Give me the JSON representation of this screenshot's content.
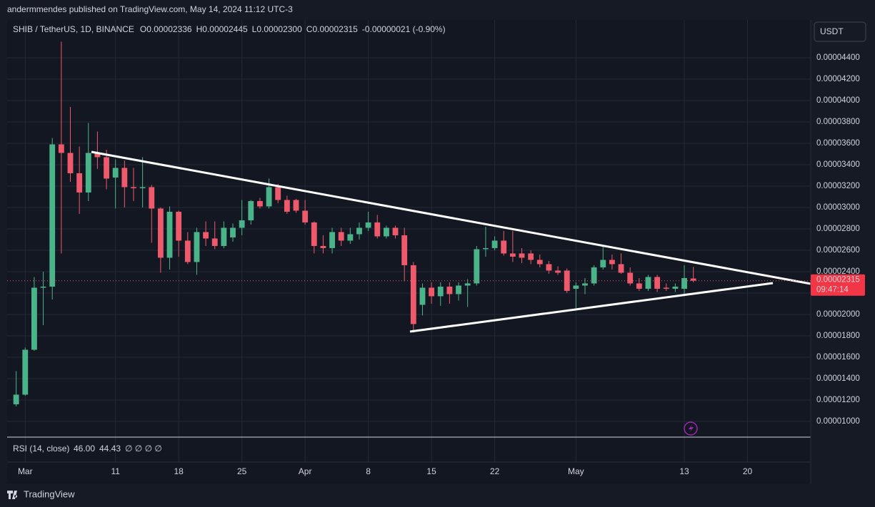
{
  "chart_data": {
    "type": "candlestick",
    "header": "andermmendes published on TradingView.com, May 14, 2024 11:12 UTC-3",
    "symbol": "SHIB / TetherUS, 1D, BINANCE",
    "ohlc_letters": [
      "O",
      "H",
      "L",
      "C"
    ],
    "last_bar_labels": {
      "open": "0.00002336",
      "high": "0.00002445",
      "low": "0.00002300",
      "close": "0.00002315",
      "change": "-0.00000021 (-0.90%)"
    },
    "currency": "USDT",
    "countdown": "09:47:14",
    "rsi": {
      "label": "RSI (14, close)",
      "values": [
        "46.00",
        "44.43"
      ],
      "colors": [
        "#7e57c2",
        "#fdd835"
      ],
      "na": "∅ ∅ ∅ ∅"
    },
    "brand": "TradingView",
    "up_color": "#4bb38a",
    "down_color": "#ee5a6b",
    "dates": [
      "2024-02-29",
      "2024-03-01",
      "2024-03-02",
      "2024-03-03",
      "2024-03-04",
      "2024-03-05",
      "2024-03-06",
      "2024-03-07",
      "2024-03-08",
      "2024-03-09",
      "2024-03-10",
      "2024-03-11",
      "2024-03-12",
      "2024-03-13",
      "2024-03-14",
      "2024-03-15",
      "2024-03-16",
      "2024-03-17",
      "2024-03-18",
      "2024-03-19",
      "2024-03-20",
      "2024-03-21",
      "2024-03-22",
      "2024-03-23",
      "2024-03-24",
      "2024-03-25",
      "2024-03-26",
      "2024-03-27",
      "2024-03-28",
      "2024-03-29",
      "2024-03-30",
      "2024-03-31",
      "2024-04-01",
      "2024-04-02",
      "2024-04-03",
      "2024-04-04",
      "2024-04-05",
      "2024-04-06",
      "2024-04-07",
      "2024-04-08",
      "2024-04-09",
      "2024-04-10",
      "2024-04-11",
      "2024-04-12",
      "2024-04-13",
      "2024-04-14",
      "2024-04-15",
      "2024-04-16",
      "2024-04-17",
      "2024-04-18",
      "2024-04-19",
      "2024-04-20",
      "2024-04-21",
      "2024-04-22",
      "2024-04-23",
      "2024-04-24",
      "2024-04-25",
      "2024-04-26",
      "2024-04-27",
      "2024-04-28",
      "2024-04-29",
      "2024-04-30",
      "2024-05-01",
      "2024-05-02",
      "2024-05-03",
      "2024-05-04",
      "2024-05-05",
      "2024-05-06",
      "2024-05-07",
      "2024-05-08",
      "2024-05-09",
      "2024-05-10",
      "2024-05-11",
      "2024-05-12",
      "2024-05-13",
      "2024-05-14"
    ],
    "open": [
      1.16e-05,
      1.25e-05,
      1.67e-05,
      2.25e-05,
      2.26e-05,
      3.59e-05,
      3.51e-05,
      3.32e-05,
      3.14e-05,
      3.51e-05,
      3.47e-05,
      3.28e-05,
      3.37e-05,
      3.19e-05,
      3.18e-05,
      3.19e-05,
      2.99e-05,
      2.53e-05,
      2.96e-05,
      2.69e-05,
      2.49e-05,
      2.77e-05,
      2.71e-05,
      2.64e-05,
      2.72e-05,
      2.81e-05,
      2.88e-05,
      3.06e-05,
      3.01e-05,
      3.19e-05,
      3.07e-05,
      3.07e-05,
      2.97e-05,
      2.86e-05,
      2.64e-05,
      2.62e-05,
      2.77e-05,
      2.69e-05,
      2.75e-05,
      2.81e-05,
      2.86e-05,
      2.73e-05,
      2.81e-05,
      2.74e-05,
      2.46e-05,
      2.09e-05,
      2.25e-05,
      2.17e-05,
      2.26e-05,
      2.19e-05,
      2.27e-05,
      2.29e-05,
      2.61e-05,
      2.62e-05,
      2.69e-05,
      2.57e-05,
      2.57e-05,
      2.57e-05,
      2.51e-05,
      2.47e-05,
      2.41e-05,
      2.41e-05,
      2.24e-05,
      2.27e-05,
      2.29e-05,
      2.44e-05,
      2.51e-05,
      2.47e-05,
      2.39e-05,
      2.29e-05,
      2.24e-05,
      2.35e-05,
      2.25e-05,
      2.24e-05,
      2.24e-05,
      2.336e-05
    ],
    "high": [
      1.47e-05,
      1.69e-05,
      2.35e-05,
      2.4e-05,
      3.65e-05,
      4.55e-05,
      3.94e-05,
      3.57e-05,
      3.79e-05,
      3.71e-05,
      3.54e-05,
      3.45e-05,
      3.44e-05,
      3.37e-05,
      3.47e-05,
      3.21e-05,
      3e-05,
      3.01e-05,
      2.97e-05,
      2.77e-05,
      2.81e-05,
      2.87e-05,
      2.87e-05,
      2.87e-05,
      2.85e-05,
      3.07e-05,
      3.07e-05,
      3.09e-05,
      3.27e-05,
      3.22e-05,
      3.11e-05,
      3.08e-05,
      3.07e-05,
      2.87e-05,
      2.74e-05,
      2.81e-05,
      2.81e-05,
      2.81e-05,
      2.86e-05,
      2.96e-05,
      2.93e-05,
      2.83e-05,
      2.83e-05,
      2.81e-05,
      2.49e-05,
      2.29e-05,
      2.3e-05,
      2.3e-05,
      2.3e-05,
      2.3e-05,
      2.33e-05,
      2.64e-05,
      2.82e-05,
      2.73e-05,
      2.78e-05,
      2.78e-05,
      2.62e-05,
      2.6e-05,
      2.56e-05,
      2.5e-05,
      2.45e-05,
      2.43e-05,
      2.3e-05,
      2.34e-05,
      2.46e-05,
      2.64e-05,
      2.56e-05,
      2.57e-05,
      2.44e-05,
      2.34e-05,
      2.37e-05,
      2.37e-05,
      2.29e-05,
      2.29e-05,
      2.46e-05,
      2.445e-05
    ],
    "low": [
      1.14e-05,
      1.24e-05,
      1.66e-05,
      1.9e-05,
      2.14e-05,
      2.57e-05,
      3.24e-05,
      2.94e-05,
      3.06e-05,
      3.36e-05,
      3.17e-05,
      2.99e-05,
      3e-05,
      3.06e-05,
      3e-05,
      2.67e-05,
      2.39e-05,
      2.42e-05,
      2.54e-05,
      2.47e-05,
      2.37e-05,
      2.64e-05,
      2.61e-05,
      2.62e-05,
      2.68e-05,
      2.74e-05,
      2.84e-05,
      2.99e-05,
      2.99e-05,
      3.04e-05,
      2.94e-05,
      2.95e-05,
      2.84e-05,
      2.57e-05,
      2.57e-05,
      2.57e-05,
      2.64e-05,
      2.66e-05,
      2.7e-05,
      2.78e-05,
      2.71e-05,
      2.71e-05,
      2.71e-05,
      2.31e-05,
      1.83e-05,
      1.99e-05,
      2.1e-05,
      2.08e-05,
      2.1e-05,
      2.13e-05,
      2.07e-05,
      2.27e-05,
      2.54e-05,
      2.6e-05,
      2.55e-05,
      2.49e-05,
      2.48e-05,
      2.47e-05,
      2.44e-05,
      2.38e-05,
      2.37e-05,
      2.2e-05,
      2.06e-05,
      2.19e-05,
      2.27e-05,
      2.42e-05,
      2.42e-05,
      2.38e-05,
      2.27e-05,
      2.22e-05,
      2.22e-05,
      2.21e-05,
      2.22e-05,
      2.21e-05,
      2.17e-05,
      2.3e-05
    ],
    "close": [
      1.25e-05,
      1.67e-05,
      2.25e-05,
      2.26e-05,
      3.59e-05,
      3.51e-05,
      3.32e-05,
      3.14e-05,
      3.51e-05,
      3.47e-05,
      3.27e-05,
      3.37e-05,
      3.19e-05,
      3.18e-05,
      3.19e-05,
      2.99e-05,
      2.53e-05,
      2.96e-05,
      2.69e-05,
      2.49e-05,
      2.77e-05,
      2.71e-05,
      2.64e-05,
      2.81e-05,
      2.81e-05,
      2.88e-05,
      3.06e-05,
      3.01e-05,
      3.19e-05,
      3.07e-05,
      2.96e-05,
      2.97e-05,
      2.86e-05,
      2.64e-05,
      2.62e-05,
      2.77e-05,
      2.69e-05,
      2.75e-05,
      2.81e-05,
      2.86e-05,
      2.73e-05,
      2.81e-05,
      2.74e-05,
      2.46e-05,
      1.91e-05,
      2.25e-05,
      2.17e-05,
      2.26e-05,
      2.19e-05,
      2.27e-05,
      2.29e-05,
      2.61e-05,
      2.62e-05,
      2.69e-05,
      2.57e-05,
      2.54e-05,
      2.53e-05,
      2.51e-05,
      2.47e-05,
      2.41e-05,
      2.39e-05,
      2.22e-05,
      2.27e-05,
      2.29e-05,
      2.44e-05,
      2.51e-05,
      2.47e-05,
      2.39e-05,
      2.29e-05,
      2.24e-05,
      2.35e-05,
      2.24e-05,
      2.24e-05,
      2.26e-05,
      2.34e-05,
      2.315e-05
    ],
    "xlim": [
      "2024-02-28",
      "2024-05-27"
    ],
    "xticks": [
      {
        "value": "2024-03-01",
        "label": "Mar"
      },
      {
        "value": "2024-03-11",
        "label": "11"
      },
      {
        "value": "2024-03-18",
        "label": "18"
      },
      {
        "value": "2024-03-25",
        "label": "25"
      },
      {
        "value": "2024-04-01",
        "label": "Apr"
      },
      {
        "value": "2024-04-08",
        "label": "8"
      },
      {
        "value": "2024-04-15",
        "label": "15"
      },
      {
        "value": "2024-04-22",
        "label": "22"
      },
      {
        "value": "2024-05-01",
        "label": "May"
      },
      {
        "value": "2024-05-13",
        "label": "13"
      },
      {
        "value": "2024-05-20",
        "label": "20"
      }
    ],
    "ylim": [
      8.53e-06,
      4.753e-05
    ],
    "yticks": [
      {
        "value": 4.4e-05,
        "label": "0.00004400"
      },
      {
        "value": 4.2e-05,
        "label": "0.00004200"
      },
      {
        "value": 4e-05,
        "label": "0.00004000"
      },
      {
        "value": 3.8e-05,
        "label": "0.00003800"
      },
      {
        "value": 3.6e-05,
        "label": "0.00003600"
      },
      {
        "value": 3.4e-05,
        "label": "0.00003400"
      },
      {
        "value": 3.2e-05,
        "label": "0.00003200"
      },
      {
        "value": 3e-05,
        "label": "0.00003000"
      },
      {
        "value": 2.8e-05,
        "label": "0.00002800"
      },
      {
        "value": 2.6e-05,
        "label": "0.00002600"
      },
      {
        "value": 2.4e-05,
        "label": "0.00002400"
      },
      {
        "value": 2.2e-05,
        "label": "0.00002200"
      },
      {
        "value": 2e-05,
        "label": "0.00002000"
      },
      {
        "value": 1.8e-05,
        "label": "0.00001800"
      },
      {
        "value": 1.6e-05,
        "label": "0.00001600"
      },
      {
        "value": 1.4e-05,
        "label": "0.00001400"
      },
      {
        "value": 1.2e-05,
        "label": "0.00001200"
      },
      {
        "value": 1e-05,
        "label": "0.00001000"
      }
    ],
    "grid": true
  }
}
